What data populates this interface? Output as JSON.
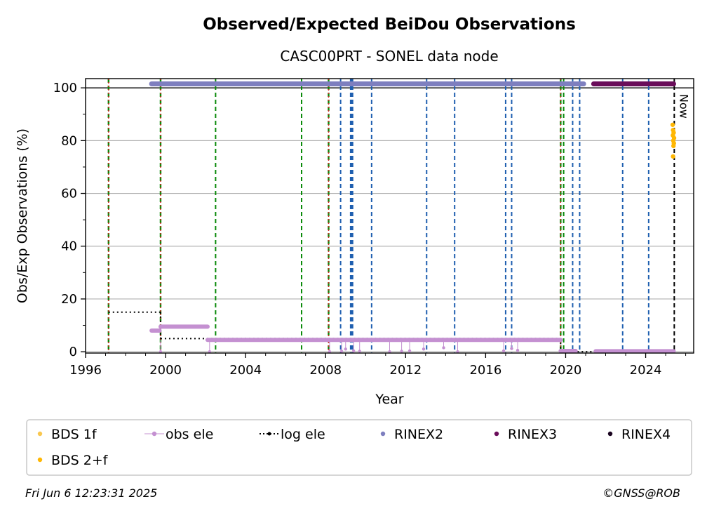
{
  "chart_data": {
    "type": "scatter",
    "title": "Observed/Expected BeiDou Observations",
    "subtitle": "CASC00PRT - SONEL data node",
    "xlabel": "Year",
    "ylabel": "Obs/Exp Observations (%)",
    "xlim": [
      1996.0,
      2026.4
    ],
    "ylim": [
      -0.5,
      103.5
    ],
    "x_ticks": [
      1996,
      2000,
      2004,
      2008,
      2012,
      2016,
      2020,
      2024
    ],
    "y_ticks": [
      0,
      20,
      40,
      60,
      80,
      100
    ],
    "grid": "horizontal",
    "reference_line": {
      "y": 100,
      "color": "#000000"
    },
    "now_label": "Now",
    "now_x": 2025.43,
    "event_lines": {
      "red_green": [
        1997.15,
        1999.75,
        2008.15,
        2019.75
      ],
      "green": [
        2002.5,
        2006.8,
        2019.9
      ],
      "blue": [
        2008.75,
        2009.25,
        2009.3,
        2009.35,
        2010.3,
        2013.05,
        2014.45,
        2017.0,
        2017.3,
        2020.35,
        2020.7,
        2022.85,
        2024.15
      ]
    },
    "series": [
      {
        "name": "BDS 1f",
        "color": "#f9c74f",
        "marker": "dot"
      },
      {
        "name": "BDS 2+f",
        "color": "#ffb703",
        "marker": "dot",
        "points": [
          [
            2025.35,
            86
          ],
          [
            2025.37,
            84
          ],
          [
            2025.4,
            83
          ],
          [
            2025.36,
            82
          ],
          [
            2025.42,
            81
          ],
          [
            2025.38,
            80
          ],
          [
            2025.41,
            79
          ],
          [
            2025.39,
            78
          ],
          [
            2025.37,
            74
          ]
        ]
      },
      {
        "name": "obs ele",
        "color": "#c490d1",
        "marker": "dot-line",
        "segments": [
          {
            "x": [
              1999.3,
              1999.7
            ],
            "y": [
              8.0,
              8.0
            ]
          },
          {
            "x": [
              1999.75,
              2002.1
            ],
            "y": [
              9.5,
              9.5
            ]
          },
          {
            "x": [
              2002.1,
              2019.75
            ],
            "y": [
              4.5,
              4.5
            ]
          },
          {
            "x": [
              2019.75,
              2020.5
            ],
            "y": [
              0.3,
              0.3
            ]
          },
          {
            "x": [
              2021.5,
              2025.4
            ],
            "y": [
              0.2,
              0.2
            ]
          }
        ],
        "dips": [
          [
            1999.75,
            0.0
          ],
          [
            2002.2,
            0.0
          ],
          [
            2008.2,
            0.0
          ],
          [
            2008.8,
            0.2
          ],
          [
            2009.0,
            1.0
          ],
          [
            2009.4,
            0.3
          ],
          [
            2009.7,
            0.2
          ],
          [
            2011.2,
            0.0
          ],
          [
            2011.8,
            0.2
          ],
          [
            2012.2,
            0.3
          ],
          [
            2012.9,
            1.0
          ],
          [
            2013.9,
            1.5
          ],
          [
            2014.6,
            0.0
          ],
          [
            2016.9,
            0.3
          ],
          [
            2017.3,
            1.2
          ],
          [
            2017.6,
            0.5
          ]
        ]
      },
      {
        "name": "log ele",
        "color": "#000000",
        "marker": "dotted-line",
        "segments": [
          {
            "x": [
              1997.15,
              1999.75
            ],
            "y": [
              15,
              15
            ]
          },
          {
            "x": [
              1999.75,
              2008.15
            ],
            "y": [
              5,
              5
            ]
          },
          {
            "x": [
              2008.15,
              2019.75
            ],
            "y": [
              5,
              5
            ]
          },
          {
            "x": [
              2019.75,
              2025.43
            ],
            "y": [
              0,
              0
            ]
          }
        ]
      },
      {
        "name": "RINEX2",
        "color": "#7e7fbf",
        "marker": "dot",
        "segments": [
          {
            "x": [
              1999.3,
              2020.9
            ],
            "y": [
              101.5,
              101.5
            ]
          }
        ]
      },
      {
        "name": "RINEX3",
        "color": "#6a0d5a",
        "marker": "dot",
        "segments": [
          {
            "x": [
              2021.4,
              2025.4
            ],
            "y": [
              101.5,
              101.5
            ]
          }
        ]
      },
      {
        "name": "RINEX4",
        "color": "#1a0420",
        "marker": "dot"
      }
    ]
  },
  "legend": {
    "items": [
      {
        "label": "BDS 1f",
        "color": "#f9c74f",
        "kind": "dot"
      },
      {
        "label": "obs ele",
        "color": "#c490d1",
        "kind": "dot-line"
      },
      {
        "label": "log ele",
        "color": "#000000",
        "kind": "dotted-line"
      },
      {
        "label": "RINEX2",
        "color": "#7e7fbf",
        "kind": "dot"
      },
      {
        "label": "RINEX3",
        "color": "#6a0d5a",
        "kind": "dot"
      },
      {
        "label": "RINEX4",
        "color": "#1a0420",
        "kind": "dot"
      },
      {
        "label": "BDS 2+f",
        "color": "#ffb703",
        "kind": "dot"
      }
    ]
  },
  "footer": {
    "timestamp": "Fri Jun  6 12:23:31 2025",
    "credit": "©GNSS@ROB"
  }
}
